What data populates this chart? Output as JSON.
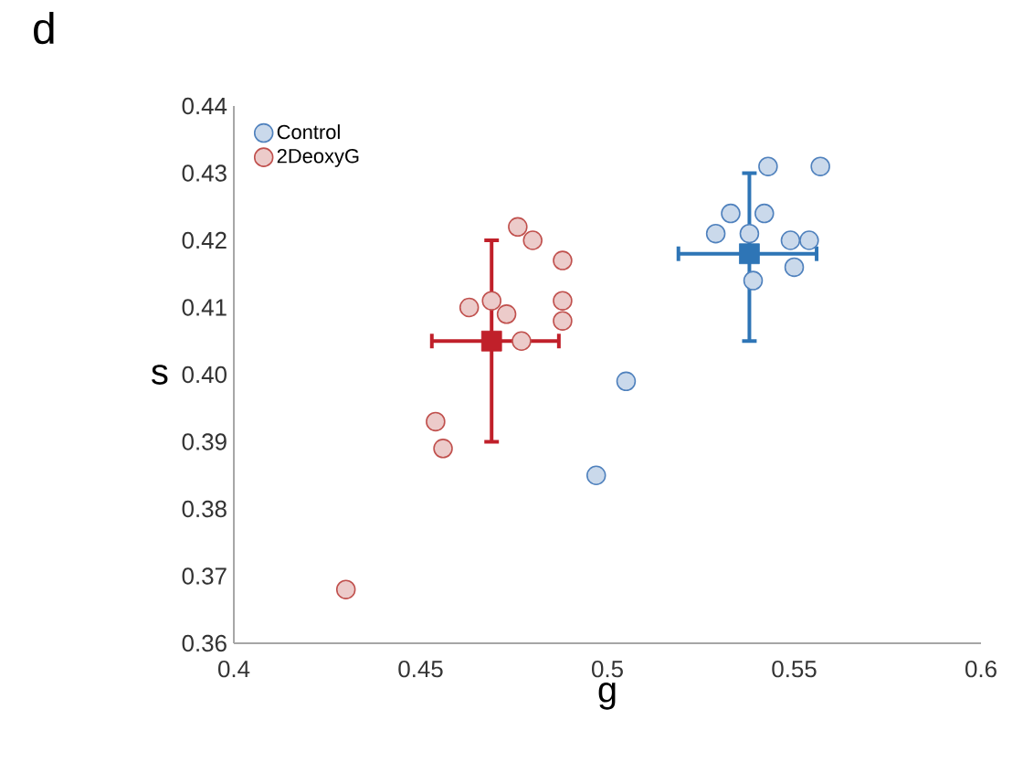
{
  "chart_data": {
    "type": "scatter",
    "title": "d",
    "xlabel": "g",
    "ylabel": "s",
    "xlim": [
      0.4,
      0.6
    ],
    "xticks": [
      0.4,
      0.45,
      0.5,
      0.55,
      0.6
    ],
    "ylim": [
      0.36,
      0.44
    ],
    "yticks": [
      0.36,
      0.37,
      0.38,
      0.39,
      {
        "value": 0.4,
        "label": "0.40"
      },
      0.41,
      0.42,
      0.43,
      0.44
    ],
    "legend": "top left",
    "grid": false,
    "series": [
      {
        "name": "Control",
        "color": "#4f81bd",
        "marker": "circle",
        "x": [
          0.543,
          0.557,
          0.533,
          0.542,
          0.529,
          0.538,
          0.549,
          0.554,
          0.55,
          0.539,
          0.505,
          0.497
        ],
        "values": [
          0.431,
          0.431,
          0.424,
          0.424,
          0.421,
          0.421,
          0.42,
          0.42,
          0.416,
          0.414,
          0.399,
          0.385
        ]
      },
      {
        "name": "2DeoxyG",
        "color": "#c0504d",
        "marker": "circle",
        "x": [
          0.476,
          0.48,
          0.488,
          0.463,
          0.469,
          0.473,
          0.488,
          0.488,
          0.477,
          0.454,
          0.456,
          0.43
        ],
        "values": [
          0.422,
          0.42,
          0.417,
          0.41,
          0.411,
          0.409,
          0.411,
          0.408,
          0.405,
          0.393,
          0.389,
          0.368
        ]
      },
      {
        "color": "#2e75b6",
        "marker": "square",
        "x": [
          0.538
        ],
        "values": [
          0.418
        ],
        "errors": [
          [
            0.405,
            0.43
          ]
        ],
        "xerrors": [
          [
            0.519,
            0.556
          ]
        ]
      },
      {
        "color": "#c0202a",
        "marker": "square",
        "x": [
          0.469
        ],
        "values": [
          0.405
        ],
        "errors": [
          [
            0.39,
            0.42
          ]
        ],
        "xerrors": [
          [
            0.453,
            0.487
          ]
        ]
      }
    ]
  }
}
